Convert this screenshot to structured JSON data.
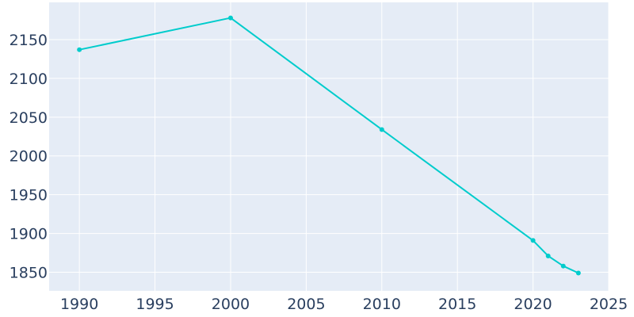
{
  "chart_data": {
    "type": "line",
    "title": "",
    "xlabel": "",
    "ylabel": "",
    "xlim": [
      1988,
      2025
    ],
    "ylim": [
      1826,
      2198
    ],
    "x_ticks": [
      1990,
      1995,
      2000,
      2005,
      2010,
      2015,
      2020,
      2025
    ],
    "y_ticks": [
      1850,
      1900,
      1950,
      2000,
      2050,
      2100,
      2150
    ],
    "grid": true,
    "legend": "none",
    "colors": {
      "line": "#00cccc",
      "plot_bg": "#e5ecf6",
      "grid": "#ffffff",
      "text": "#2a3f5f"
    },
    "series": [
      {
        "x": [
          1990,
          2000,
          2010,
          2020,
          2021,
          2022,
          2023
        ],
        "y": [
          2137,
          2178,
          2034,
          1891,
          1871,
          1858,
          1849
        ]
      }
    ]
  }
}
